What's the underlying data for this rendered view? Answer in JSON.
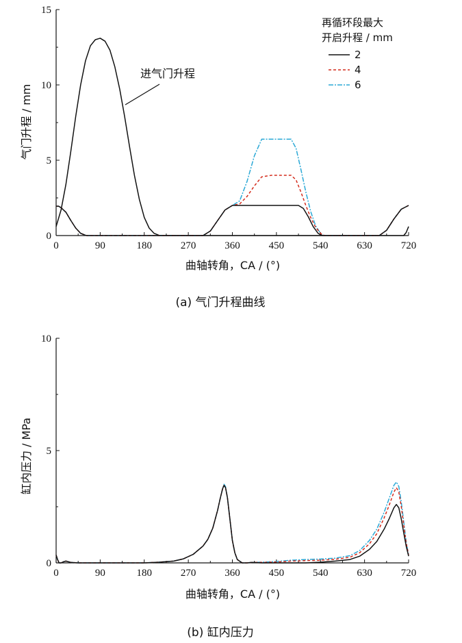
{
  "chart_data": [
    {
      "type": "line",
      "caption": "(a)  气门升程曲线",
      "xlabel": "曲轴转角，CA / (°)",
      "ylabel": "气门升程 / mm",
      "xlim": [
        0,
        720
      ],
      "ylim": [
        0,
        15
      ],
      "xticks": [
        0,
        90,
        180,
        270,
        360,
        450,
        540,
        630,
        720
      ],
      "yticks": [
        0,
        5,
        10,
        15
      ],
      "legend_title": [
        "再循环段最大",
        "开启升程 / mm"
      ],
      "annotation": "进气门升程",
      "series": [
        {
          "name": "2",
          "color": "#111111",
          "dash": "",
          "x": [
            0,
            5,
            10,
            20,
            30,
            40,
            50,
            60,
            63,
            300,
            315,
            330,
            345,
            360,
            380,
            400,
            420,
            440,
            460,
            480,
            495,
            505,
            515,
            525,
            535,
            540,
            545,
            550,
            660,
            675,
            690,
            705,
            720
          ],
          "y": [
            1.95,
            1.95,
            1.85,
            1.55,
            1.0,
            0.5,
            0.15,
            0.02,
            0,
            0,
            0.3,
            1.0,
            1.7,
            2.0,
            2.0,
            2.0,
            2.0,
            2.0,
            2.0,
            2.0,
            2.0,
            1.8,
            1.25,
            0.6,
            0.15,
            0.05,
            0.0,
            0,
            0,
            0.35,
            1.1,
            1.75,
            2.0
          ]
        },
        {
          "name": "4",
          "color": "#d42a1a",
          "dash": "4,3",
          "x": [
            0,
            5,
            10,
            20,
            30,
            40,
            50,
            60,
            63,
            300,
            315,
            330,
            345,
            360,
            375,
            390,
            405,
            420,
            440,
            460,
            480,
            490,
            500,
            510,
            520,
            530,
            540,
            545,
            550,
            660,
            675,
            690,
            705,
            720
          ],
          "y": [
            1.95,
            1.95,
            1.85,
            1.55,
            1.0,
            0.5,
            0.15,
            0.02,
            0,
            0,
            0.3,
            1.0,
            1.7,
            2.0,
            2.1,
            2.6,
            3.3,
            3.9,
            4.0,
            4.0,
            4.0,
            3.7,
            2.9,
            2.0,
            1.2,
            0.55,
            0.15,
            0.03,
            0,
            0,
            0.35,
            1.1,
            1.75,
            2.0
          ]
        },
        {
          "name": "6",
          "color": "#2aa8d6",
          "dash": "7,2,2,2",
          "x": [
            0,
            5,
            10,
            20,
            30,
            40,
            50,
            60,
            63,
            300,
            315,
            330,
            345,
            360,
            375,
            390,
            405,
            420,
            440,
            460,
            480,
            490,
            500,
            510,
            520,
            530,
            540,
            545,
            550,
            660,
            675,
            690,
            705,
            720
          ],
          "y": [
            1.95,
            1.95,
            1.85,
            1.55,
            1.0,
            0.5,
            0.15,
            0.02,
            0,
            0,
            0.3,
            1.0,
            1.7,
            2.0,
            2.3,
            3.6,
            5.3,
            6.4,
            6.4,
            6.4,
            6.4,
            5.8,
            4.4,
            2.9,
            1.6,
            0.65,
            0.15,
            0.03,
            0,
            0,
            0.35,
            1.1,
            1.75,
            2.0
          ]
        },
        {
          "name": "",
          "color": "#111111",
          "dash": "",
          "x": [
            0,
            10,
            20,
            30,
            40,
            50,
            60,
            70,
            80,
            90,
            100,
            110,
            120,
            130,
            140,
            150,
            160,
            170,
            180,
            190,
            200,
            210,
            216,
            710,
            715,
            720
          ],
          "y": [
            0.6,
            1.7,
            3.4,
            5.6,
            7.9,
            10.0,
            11.6,
            12.6,
            13.0,
            13.1,
            12.9,
            12.3,
            11.2,
            9.7,
            7.9,
            5.9,
            4.0,
            2.4,
            1.2,
            0.5,
            0.15,
            0.02,
            0,
            0,
            0.2,
            0.6
          ]
        }
      ]
    },
    {
      "type": "line",
      "caption": "(b)  缸内压力",
      "xlabel": "曲轴转角，CA / (°)",
      "ylabel": "缸内压力 / MPa",
      "xlim": [
        0,
        720
      ],
      "ylim": [
        0,
        10
      ],
      "xticks": [
        0,
        90,
        180,
        270,
        360,
        450,
        540,
        630,
        720
      ],
      "yticks": [
        0,
        5,
        10
      ],
      "series": [
        {
          "name": "2",
          "color": "#111111",
          "dash": "",
          "x": [
            0,
            3,
            6,
            10,
            15,
            20,
            30,
            45,
            60,
            90,
            120,
            150,
            180,
            210,
            240,
            260,
            280,
            300,
            310,
            320,
            330,
            335,
            340,
            343,
            346,
            350,
            355,
            360,
            365,
            370,
            380,
            390,
            400,
            420,
            450,
            480,
            510,
            540,
            570,
            600,
            620,
            640,
            655,
            670,
            680,
            690,
            695,
            700,
            705,
            710,
            715,
            720
          ],
          "y": [
            0.35,
            0.15,
            0.0,
            -0.05,
            0.05,
            0.08,
            0.02,
            -0.04,
            -0.05,
            -0.02,
            0.0,
            0.0,
            0.0,
            0.03,
            0.08,
            0.18,
            0.38,
            0.75,
            1.05,
            1.55,
            2.35,
            2.85,
            3.3,
            3.45,
            3.35,
            2.9,
            1.95,
            1.0,
            0.45,
            0.15,
            0.0,
            -0.05,
            0.02,
            -0.03,
            -0.05,
            -0.02,
            0.0,
            0.03,
            0.08,
            0.15,
            0.3,
            0.6,
            0.95,
            1.5,
            1.95,
            2.45,
            2.6,
            2.45,
            1.95,
            1.35,
            0.75,
            0.3
          ]
        },
        {
          "name": "4",
          "color": "#d42a1a",
          "dash": "4,3",
          "x": [
            0,
            3,
            6,
            10,
            15,
            20,
            30,
            45,
            60,
            90,
            120,
            150,
            180,
            210,
            240,
            260,
            280,
            300,
            310,
            320,
            330,
            335,
            340,
            343,
            346,
            350,
            355,
            360,
            365,
            370,
            380,
            390,
            400,
            420,
            450,
            480,
            510,
            540,
            570,
            600,
            620,
            640,
            655,
            670,
            680,
            690,
            695,
            700,
            705,
            710,
            715,
            720
          ],
          "y": [
            0.35,
            0.15,
            0.0,
            -0.05,
            0.05,
            0.08,
            0.02,
            -0.04,
            -0.05,
            -0.02,
            0.0,
            0.0,
            0.0,
            0.03,
            0.08,
            0.18,
            0.38,
            0.75,
            1.05,
            1.55,
            2.35,
            2.85,
            3.3,
            3.45,
            3.35,
            2.9,
            1.95,
            1.0,
            0.45,
            0.15,
            0.0,
            -0.05,
            0.02,
            0.02,
            0.04,
            0.08,
            0.1,
            0.12,
            0.16,
            0.25,
            0.45,
            0.85,
            1.3,
            2.0,
            2.55,
            3.15,
            3.35,
            3.15,
            2.5,
            1.7,
            0.9,
            0.35
          ]
        },
        {
          "name": "6",
          "color": "#2aa8d6",
          "dash": "7,2,2,2",
          "x": [
            0,
            3,
            6,
            10,
            15,
            20,
            30,
            45,
            60,
            90,
            120,
            150,
            180,
            210,
            240,
            260,
            280,
            300,
            310,
            320,
            330,
            335,
            340,
            343,
            346,
            350,
            355,
            360,
            365,
            370,
            380,
            390,
            400,
            420,
            450,
            480,
            510,
            540,
            570,
            600,
            620,
            640,
            655,
            670,
            680,
            690,
            695,
            700,
            705,
            710,
            715,
            720
          ],
          "y": [
            0.35,
            0.15,
            0.0,
            -0.05,
            0.05,
            0.08,
            0.02,
            -0.04,
            -0.05,
            -0.02,
            0.0,
            0.0,
            0.0,
            0.03,
            0.08,
            0.18,
            0.38,
            0.75,
            1.05,
            1.55,
            2.35,
            2.85,
            3.3,
            3.5,
            3.4,
            2.9,
            1.95,
            1.0,
            0.45,
            0.15,
            0.0,
            -0.05,
            0.02,
            0.03,
            0.06,
            0.12,
            0.15,
            0.17,
            0.21,
            0.32,
            0.55,
            1.0,
            1.5,
            2.25,
            2.85,
            3.45,
            3.6,
            3.4,
            2.7,
            1.85,
            0.95,
            0.35
          ]
        }
      ]
    }
  ]
}
